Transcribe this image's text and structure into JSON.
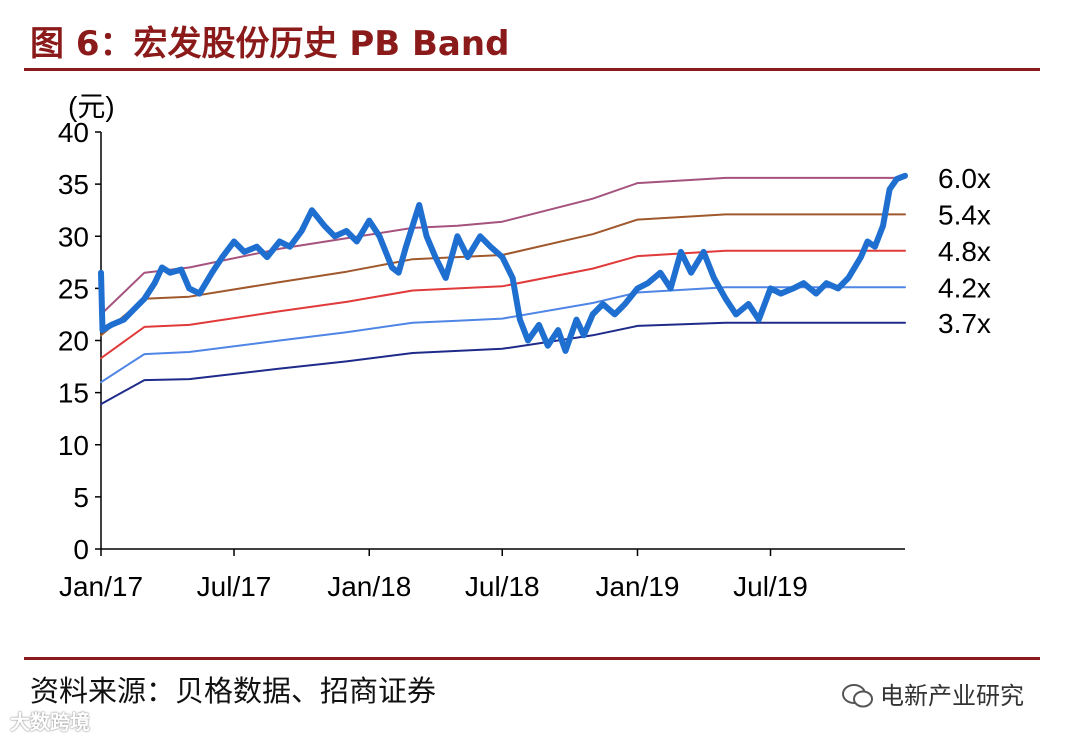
{
  "header": {
    "title": "图 6：宏发股份历史 PB Band"
  },
  "footer": {
    "source": "资料来源：贝格数据、招商证券",
    "wechat_account": "电新产业研究",
    "watermark": "大数跨境"
  },
  "colors": {
    "accent": "#8b1a1a",
    "price": "#1f6fd1"
  },
  "chart_data": {
    "type": "line",
    "title": "宏发股份历史 PB Band",
    "ylabel": "(元)",
    "ylim": [
      0,
      40
    ],
    "yticks": [
      0,
      5,
      10,
      15,
      20,
      25,
      30,
      35,
      40
    ],
    "xlim": [
      "2017-01-01",
      "2019-12-31"
    ],
    "xticks": [
      "Jan/17",
      "Jul/17",
      "Jan/18",
      "Jul/18",
      "Jan/19",
      "Jul/19"
    ],
    "xtick_dates": [
      "2017-01-01",
      "2017-07-01",
      "2018-01-01",
      "2018-07-01",
      "2019-01-01",
      "2019-07-01"
    ],
    "grid": false,
    "series": [
      {
        "name": "6.0x",
        "color": "#a5537e",
        "width": 2,
        "points": [
          [
            "2017-01-01",
            22.5
          ],
          [
            "2017-03-01",
            26.5
          ],
          [
            "2017-05-01",
            27.0
          ],
          [
            "2017-09-01",
            28.8
          ],
          [
            "2017-12-01",
            29.8
          ],
          [
            "2018-03-01",
            30.8
          ],
          [
            "2018-05-01",
            31.0
          ],
          [
            "2018-07-01",
            31.4
          ],
          [
            "2018-11-01",
            33.6
          ],
          [
            "2019-01-01",
            35.1
          ],
          [
            "2019-05-01",
            35.6
          ],
          [
            "2019-12-31",
            35.6
          ]
        ]
      },
      {
        "name": "5.4x",
        "color": "#a0582d",
        "width": 2,
        "points": [
          [
            "2017-01-01",
            20.5
          ],
          [
            "2017-03-01",
            24.0
          ],
          [
            "2017-05-01",
            24.2
          ],
          [
            "2017-09-01",
            25.6
          ],
          [
            "2017-12-01",
            26.6
          ],
          [
            "2018-03-01",
            27.8
          ],
          [
            "2018-05-01",
            28.0
          ],
          [
            "2018-07-01",
            28.2
          ],
          [
            "2018-11-01",
            30.2
          ],
          [
            "2019-01-01",
            31.6
          ],
          [
            "2019-05-01",
            32.1
          ],
          [
            "2019-12-31",
            32.1
          ]
        ]
      },
      {
        "name": "4.8x",
        "color": "#e03a3a",
        "width": 2,
        "points": [
          [
            "2017-01-01",
            18.3
          ],
          [
            "2017-03-01",
            21.3
          ],
          [
            "2017-05-01",
            21.5
          ],
          [
            "2017-09-01",
            22.8
          ],
          [
            "2017-12-01",
            23.7
          ],
          [
            "2018-03-01",
            24.8
          ],
          [
            "2018-05-01",
            25.0
          ],
          [
            "2018-07-01",
            25.2
          ],
          [
            "2018-11-01",
            26.9
          ],
          [
            "2019-01-01",
            28.1
          ],
          [
            "2019-05-01",
            28.6
          ],
          [
            "2019-12-31",
            28.6
          ]
        ]
      },
      {
        "name": "4.2x",
        "color": "#4f86e6",
        "width": 2,
        "points": [
          [
            "2017-01-01",
            16.0
          ],
          [
            "2017-03-01",
            18.7
          ],
          [
            "2017-05-01",
            18.9
          ],
          [
            "2017-09-01",
            20.0
          ],
          [
            "2017-12-01",
            20.8
          ],
          [
            "2018-03-01",
            21.7
          ],
          [
            "2018-05-01",
            21.9
          ],
          [
            "2018-07-01",
            22.1
          ],
          [
            "2018-11-01",
            23.6
          ],
          [
            "2019-01-01",
            24.6
          ],
          [
            "2019-05-01",
            25.1
          ],
          [
            "2019-12-31",
            25.1
          ]
        ]
      },
      {
        "name": "3.7x",
        "color": "#1f2b8a",
        "width": 2,
        "points": [
          [
            "2017-01-01",
            13.9
          ],
          [
            "2017-03-01",
            16.2
          ],
          [
            "2017-05-01",
            16.3
          ],
          [
            "2017-09-01",
            17.3
          ],
          [
            "2017-12-01",
            18.0
          ],
          [
            "2018-03-01",
            18.8
          ],
          [
            "2018-05-01",
            19.0
          ],
          [
            "2018-07-01",
            19.2
          ],
          [
            "2018-11-01",
            20.5
          ],
          [
            "2019-01-01",
            21.4
          ],
          [
            "2019-05-01",
            21.7
          ],
          [
            "2019-12-31",
            21.7
          ]
        ]
      },
      {
        "name": "",
        "color": "#1f6fd1",
        "width": 6,
        "points": [
          [
            "2017-01-01",
            26.5
          ],
          [
            "2017-01-03",
            21.0
          ],
          [
            "2017-01-15",
            21.5
          ],
          [
            "2017-02-01",
            22.0
          ],
          [
            "2017-02-15",
            23.0
          ],
          [
            "2017-03-01",
            24.0
          ],
          [
            "2017-03-15",
            25.5
          ],
          [
            "2017-03-25",
            27.0
          ],
          [
            "2017-04-05",
            26.5
          ],
          [
            "2017-04-20",
            26.8
          ],
          [
            "2017-05-01",
            25.0
          ],
          [
            "2017-05-15",
            24.5
          ],
          [
            "2017-06-01",
            26.5
          ],
          [
            "2017-06-15",
            28.0
          ],
          [
            "2017-07-01",
            29.5
          ],
          [
            "2017-07-15",
            28.5
          ],
          [
            "2017-08-01",
            29.0
          ],
          [
            "2017-08-15",
            28.0
          ],
          [
            "2017-09-01",
            29.5
          ],
          [
            "2017-09-15",
            29.0
          ],
          [
            "2017-10-01",
            30.5
          ],
          [
            "2017-10-15",
            32.5
          ],
          [
            "2017-11-01",
            31.0
          ],
          [
            "2017-11-15",
            30.0
          ],
          [
            "2017-12-01",
            30.5
          ],
          [
            "2017-12-15",
            29.5
          ],
          [
            "2018-01-01",
            31.5
          ],
          [
            "2018-01-15",
            30.0
          ],
          [
            "2018-02-01",
            27.0
          ],
          [
            "2018-02-10",
            26.5
          ],
          [
            "2018-02-20",
            29.0
          ],
          [
            "2018-03-01",
            31.0
          ],
          [
            "2018-03-10",
            33.0
          ],
          [
            "2018-03-20",
            30.0
          ],
          [
            "2018-04-01",
            28.0
          ],
          [
            "2018-04-15",
            26.0
          ],
          [
            "2018-05-01",
            30.0
          ],
          [
            "2018-05-15",
            28.0
          ],
          [
            "2018-06-01",
            30.0
          ],
          [
            "2018-06-15",
            29.0
          ],
          [
            "2018-07-01",
            28.0
          ],
          [
            "2018-07-15",
            26.0
          ],
          [
            "2018-07-25",
            22.0
          ],
          [
            "2018-08-05",
            20.0
          ],
          [
            "2018-08-20",
            21.5
          ],
          [
            "2018-09-01",
            19.5
          ],
          [
            "2018-09-15",
            21.0
          ],
          [
            "2018-09-25",
            19.0
          ],
          [
            "2018-10-10",
            22.0
          ],
          [
            "2018-10-20",
            20.5
          ],
          [
            "2018-11-01",
            22.5
          ],
          [
            "2018-11-15",
            23.5
          ],
          [
            "2018-12-01",
            22.5
          ],
          [
            "2018-12-15",
            23.5
          ],
          [
            "2019-01-01",
            25.0
          ],
          [
            "2019-01-15",
            25.5
          ],
          [
            "2019-02-01",
            26.5
          ],
          [
            "2019-02-15",
            25.0
          ],
          [
            "2019-03-01",
            28.5
          ],
          [
            "2019-03-15",
            26.5
          ],
          [
            "2019-04-01",
            28.5
          ],
          [
            "2019-04-15",
            26.0
          ],
          [
            "2019-05-01",
            24.0
          ],
          [
            "2019-05-15",
            22.5
          ],
          [
            "2019-06-01",
            23.5
          ],
          [
            "2019-06-15",
            22.0
          ],
          [
            "2019-07-01",
            25.0
          ],
          [
            "2019-07-15",
            24.5
          ],
          [
            "2019-08-01",
            25.0
          ],
          [
            "2019-08-15",
            25.5
          ],
          [
            "2019-09-01",
            24.5
          ],
          [
            "2019-09-15",
            25.5
          ],
          [
            "2019-10-01",
            25.0
          ],
          [
            "2019-10-15",
            26.0
          ],
          [
            "2019-11-01",
            28.0
          ],
          [
            "2019-11-10",
            29.5
          ],
          [
            "2019-11-20",
            29.0
          ],
          [
            "2019-12-01",
            31.0
          ],
          [
            "2019-12-10",
            34.5
          ],
          [
            "2019-12-20",
            35.5
          ],
          [
            "2019-12-31",
            35.8
          ]
        ]
      }
    ]
  }
}
